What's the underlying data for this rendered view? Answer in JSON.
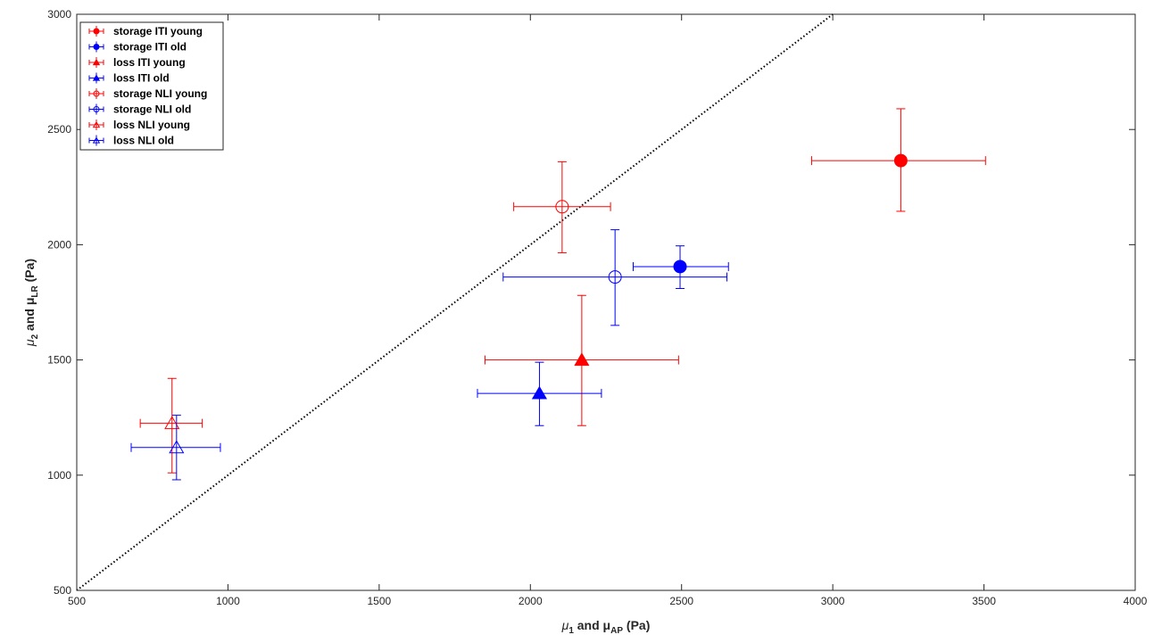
{
  "chart_data": {
    "type": "scatter",
    "title": "",
    "xlabel_main": "μ",
    "xlabel_sub1": "1",
    "xlabel_mid": " and μ",
    "xlabel_sub2": "AP",
    "xlabel_unit": " (Pa)",
    "ylabel_main": "μ",
    "ylabel_sub1": "2",
    "ylabel_mid": " and μ",
    "ylabel_sub2": "LR",
    "ylabel_unit": " (Pa)",
    "xlim": [
      500,
      4000
    ],
    "ylim": [
      500,
      3000
    ],
    "xticks": [
      500,
      1000,
      1500,
      2000,
      2500,
      3000,
      3500,
      4000
    ],
    "yticks": [
      500,
      1000,
      1500,
      2000,
      2500,
      3000
    ],
    "grid": false,
    "legend_position": "top-left",
    "reference_line": {
      "style": "dotted",
      "color": "#000000",
      "from": [
        500,
        500
      ],
      "to": [
        3000,
        3000
      ]
    },
    "series": [
      {
        "name": "storage ITI young",
        "marker": "circle",
        "filled": true,
        "color": "#ff0000",
        "x": 3225,
        "y": 2365,
        "xerr": [
          2930,
          3505
        ],
        "yerr": [
          2145,
          2590
        ]
      },
      {
        "name": "storage ITI old",
        "marker": "circle",
        "filled": true,
        "color": "#0000ff",
        "x": 2495,
        "y": 1905,
        "xerr": [
          2340,
          2655
        ],
        "yerr": [
          1810,
          1995
        ]
      },
      {
        "name": "loss ITI young",
        "marker": "triangle",
        "filled": true,
        "color": "#ff0000",
        "x": 2170,
        "y": 1500,
        "xerr": [
          1850,
          2490
        ],
        "yerr": [
          1215,
          1780
        ]
      },
      {
        "name": "loss ITI old",
        "marker": "triangle",
        "filled": true,
        "color": "#0000ff",
        "x": 2030,
        "y": 1355,
        "xerr": [
          1825,
          2235
        ],
        "yerr": [
          1215,
          1490
        ]
      },
      {
        "name": "storage NLI young",
        "marker": "circle",
        "filled": false,
        "color": "#ff0000",
        "x": 2105,
        "y": 2165,
        "xerr": [
          1945,
          2265
        ],
        "yerr": [
          1965,
          2360
        ]
      },
      {
        "name": "storage NLI old",
        "marker": "circle",
        "filled": false,
        "color": "#0000ff",
        "x": 2280,
        "y": 1860,
        "xerr": [
          1910,
          2650
        ],
        "yerr": [
          1650,
          2065
        ]
      },
      {
        "name": "loss NLI young",
        "marker": "triangle",
        "filled": false,
        "color": "#ff0000",
        "x": 815,
        "y": 1225,
        "xerr": [
          710,
          915
        ],
        "yerr": [
          1010,
          1420
        ]
      },
      {
        "name": "loss NLI old",
        "marker": "triangle",
        "filled": false,
        "color": "#0000ff",
        "x": 830,
        "y": 1120,
        "xerr": [
          680,
          975
        ],
        "yerr": [
          980,
          1260
        ]
      }
    ]
  }
}
